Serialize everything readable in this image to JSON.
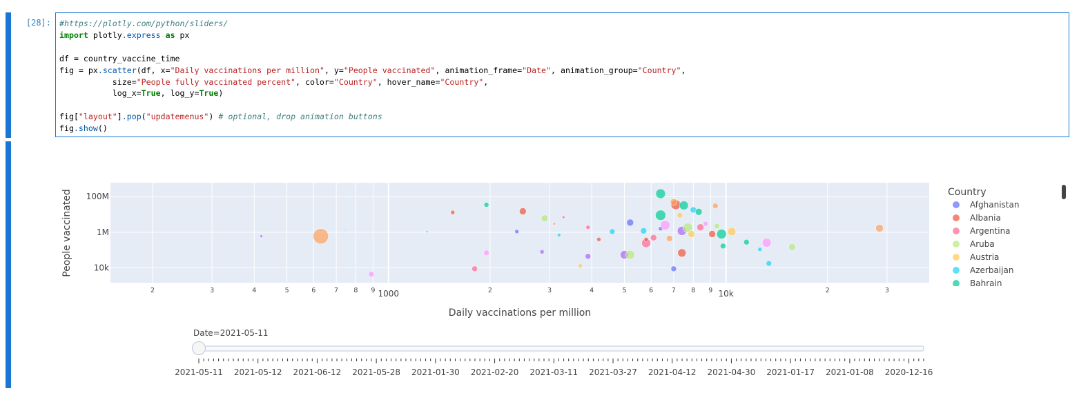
{
  "cell": {
    "prompt": "[28]:",
    "code_lines": [
      [
        {
          "c": "cm",
          "t": "#https://plotly.com/python/sliders/"
        }
      ],
      [
        {
          "c": "kw",
          "t": "import"
        },
        {
          "c": "",
          "t": " plotly"
        },
        {
          "c": "at",
          "t": ".express"
        },
        {
          "c": "",
          "t": " "
        },
        {
          "c": "kw",
          "t": "as"
        },
        {
          "c": "",
          "t": " px"
        }
      ],
      [
        {
          "c": "",
          "t": ""
        }
      ],
      [
        {
          "c": "",
          "t": "df = country_vaccine_time"
        }
      ],
      [
        {
          "c": "",
          "t": "fig = px"
        },
        {
          "c": "at",
          "t": ".scatter"
        },
        {
          "c": "",
          "t": "(df, x="
        },
        {
          "c": "st",
          "t": "\"Daily vaccinations per million\""
        },
        {
          "c": "",
          "t": ", y="
        },
        {
          "c": "st",
          "t": "\"People vaccinated\""
        },
        {
          "c": "",
          "t": ", animation_frame="
        },
        {
          "c": "st",
          "t": "\"Date\""
        },
        {
          "c": "",
          "t": ", animation_group="
        },
        {
          "c": "st",
          "t": "\"Country\""
        },
        {
          "c": "",
          "t": ","
        }
      ],
      [
        {
          "c": "",
          "t": "           size="
        },
        {
          "c": "st",
          "t": "\"People fully vaccinated percent\""
        },
        {
          "c": "",
          "t": ", color="
        },
        {
          "c": "st",
          "t": "\"Country\""
        },
        {
          "c": "",
          "t": ", hover_name="
        },
        {
          "c": "st",
          "t": "\"Country\""
        },
        {
          "c": "",
          "t": ","
        }
      ],
      [
        {
          "c": "",
          "t": "           log_x="
        },
        {
          "c": "kw",
          "t": "True"
        },
        {
          "c": "",
          "t": ", log_y="
        },
        {
          "c": "kw",
          "t": "True"
        },
        {
          "c": "",
          "t": ")"
        }
      ],
      [
        {
          "c": "",
          "t": ""
        }
      ],
      [
        {
          "c": "",
          "t": "fig["
        },
        {
          "c": "st",
          "t": "\"layout\""
        },
        {
          "c": "",
          "t": "]"
        },
        {
          "c": "at",
          "t": ".pop"
        },
        {
          "c": "",
          "t": "("
        },
        {
          "c": "st",
          "t": "\"updatemenus\""
        },
        {
          "c": "",
          "t": ") "
        },
        {
          "c": "cm",
          "t": "# optional, drop animation buttons"
        }
      ],
      [
        {
          "c": "",
          "t": "fig"
        },
        {
          "c": "at",
          "t": ".show"
        },
        {
          "c": "",
          "t": "()"
        }
      ]
    ]
  },
  "chart_data": {
    "type": "scatter",
    "xlabel": "Daily vaccinations per million",
    "ylabel": "People vaccinated",
    "x_log": true,
    "y_log": true,
    "xlim": [
      150,
      40000
    ],
    "ylim": [
      1500,
      600000000
    ],
    "x_major_ticks": [
      {
        "v": 1000,
        "label": "1000"
      },
      {
        "v": 10000,
        "label": "10k"
      }
    ],
    "x_minor_ticks": [
      {
        "v": 200,
        "label": "2"
      },
      {
        "v": 300,
        "label": "3"
      },
      {
        "v": 400,
        "label": "4"
      },
      {
        "v": 500,
        "label": "5"
      },
      {
        "v": 600,
        "label": "6"
      },
      {
        "v": 700,
        "label": "7"
      },
      {
        "v": 800,
        "label": "8"
      },
      {
        "v": 900,
        "label": "9"
      },
      {
        "v": 2000,
        "label": "2"
      },
      {
        "v": 3000,
        "label": "3"
      },
      {
        "v": 4000,
        "label": "4"
      },
      {
        "v": 5000,
        "label": "5"
      },
      {
        "v": 6000,
        "label": "6"
      },
      {
        "v": 7000,
        "label": "7"
      },
      {
        "v": 8000,
        "label": "8"
      },
      {
        "v": 9000,
        "label": "9"
      },
      {
        "v": 20000,
        "label": "2"
      },
      {
        "v": 30000,
        "label": "3"
      }
    ],
    "y_ticks": [
      {
        "v": 10000,
        "label": "10k"
      },
      {
        "v": 1000000,
        "label": "1M"
      },
      {
        "v": 100000000,
        "label": "100M"
      }
    ],
    "grid": true,
    "legend": {
      "title": "Country",
      "placement": "right",
      "entries": [
        {
          "name": "Afghanistan",
          "color": "#636efa"
        },
        {
          "name": "Albania",
          "color": "#ef553b"
        },
        {
          "name": "Argentina",
          "color": "#ff6692"
        },
        {
          "name": "Aruba",
          "color": "#b6e880"
        },
        {
          "name": "Austria",
          "color": "#fecb52"
        },
        {
          "name": "Azerbaijan",
          "color": "#19d3f3"
        },
        {
          "name": "Bahrain",
          "color": "#00cc96"
        }
      ]
    },
    "palette": [
      "#636efa",
      "#ef553b",
      "#00cc96",
      "#ab63fa",
      "#ffa15a",
      "#19d3f3",
      "#ff6692",
      "#b6e880",
      "#ff97ff",
      "#fecb52"
    ],
    "points": [
      {
        "x": 420,
        "y": 600000,
        "s": 2,
        "c": 3
      },
      {
        "x": 630,
        "y": 600000,
        "s": 11,
        "c": 4
      },
      {
        "x": 740,
        "y": 1300000,
        "s": 1,
        "c": 5
      },
      {
        "x": 890,
        "y": 4500,
        "s": 4,
        "c": 8
      },
      {
        "x": 960,
        "y": 4200000,
        "s": 1,
        "c": 9
      },
      {
        "x": 1300,
        "y": 1100000,
        "s": 1.5,
        "c": 5
      },
      {
        "x": 1550,
        "y": 13000000,
        "s": 3,
        "c": 1
      },
      {
        "x": 1950,
        "y": 35000000,
        "s": 3.5,
        "c": 2
      },
      {
        "x": 2500,
        "y": 15000000,
        "s": 5,
        "c": 1
      },
      {
        "x": 2400,
        "y": 1100000,
        "s": 3,
        "c": 0
      },
      {
        "x": 1800,
        "y": 9000,
        "s": 4,
        "c": 6
      },
      {
        "x": 1950,
        "y": 70000,
        "s": 4,
        "c": 8
      },
      {
        "x": 2900,
        "y": 6000000,
        "s": 5,
        "c": 7
      },
      {
        "x": 3100,
        "y": 3000000,
        "s": 2,
        "c": 4
      },
      {
        "x": 3300,
        "y": 7000000,
        "s": 2,
        "c": 6
      },
      {
        "x": 3200,
        "y": 700000,
        "s": 2.5,
        "c": 5
      },
      {
        "x": 2850,
        "y": 80000,
        "s": 3,
        "c": 3
      },
      {
        "x": 3700,
        "y": 13000,
        "s": 3,
        "c": 9
      },
      {
        "x": 3900,
        "y": 45000,
        "s": 4,
        "c": 3
      },
      {
        "x": 3900,
        "y": 1900000,
        "s": 3,
        "c": 6
      },
      {
        "x": 4200,
        "y": 400000,
        "s": 3,
        "c": 1
      },
      {
        "x": 4600,
        "y": 1100000,
        "s": 4,
        "c": 5
      },
      {
        "x": 5000,
        "y": 55000,
        "s": 6,
        "c": 3
      },
      {
        "x": 5200,
        "y": 55000,
        "s": 6.5,
        "c": 7
      },
      {
        "x": 5200,
        "y": 3500000,
        "s": 5,
        "c": 0
      },
      {
        "x": 5700,
        "y": 1200000,
        "s": 4.5,
        "c": 5
      },
      {
        "x": 5800,
        "y": 250000,
        "s": 6.5,
        "c": 6
      },
      {
        "x": 6400,
        "y": 1600000,
        "s": 3,
        "c": 0
      },
      {
        "x": 6400,
        "y": 145000000,
        "s": 7,
        "c": 2
      },
      {
        "x": 6400,
        "y": 9000000,
        "s": 7.5,
        "c": 2
      },
      {
        "x": 6600,
        "y": 2500000,
        "s": 7,
        "c": 8
      },
      {
        "x": 7000,
        "y": 9000,
        "s": 4,
        "c": 0
      },
      {
        "x": 7100,
        "y": 35000000,
        "s": 7,
        "c": 1
      },
      {
        "x": 7500,
        "y": 32000000,
        "s": 6.5,
        "c": 2
      },
      {
        "x": 7400,
        "y": 70000,
        "s": 6,
        "c": 1
      },
      {
        "x": 7400,
        "y": 1200000,
        "s": 6.5,
        "c": 3
      },
      {
        "x": 7700,
        "y": 1800000,
        "s": 7,
        "c": 7
      },
      {
        "x": 8000,
        "y": 18000000,
        "s": 4.5,
        "c": 5
      },
      {
        "x": 8300,
        "y": 14000000,
        "s": 5,
        "c": 2
      },
      {
        "x": 8400,
        "y": 1900000,
        "s": 5,
        "c": 6
      },
      {
        "x": 9100,
        "y": 800000,
        "s": 5,
        "c": 1
      },
      {
        "x": 9300,
        "y": 30000000,
        "s": 4,
        "c": 4
      },
      {
        "x": 9400,
        "y": 2200000,
        "s": 4,
        "c": 7
      },
      {
        "x": 9700,
        "y": 800000,
        "s": 7,
        "c": 2
      },
      {
        "x": 9800,
        "y": 170000,
        "s": 4,
        "c": 2
      },
      {
        "x": 10400,
        "y": 1100000,
        "s": 6,
        "c": 9
      },
      {
        "x": 11500,
        "y": 280000,
        "s": 4,
        "c": 2
      },
      {
        "x": 12600,
        "y": 110000,
        "s": 3,
        "c": 5
      },
      {
        "x": 13200,
        "y": 260000,
        "s": 6.5,
        "c": 8
      },
      {
        "x": 13400,
        "y": 18000,
        "s": 4,
        "c": 5
      },
      {
        "x": 15700,
        "y": 150000,
        "s": 5,
        "c": 7
      },
      {
        "x": 28500,
        "y": 1700000,
        "s": 5.5,
        "c": 4
      },
      {
        "x": 6800,
        "y": 450000,
        "s": 4.5,
        "c": 4
      },
      {
        "x": 7300,
        "y": 9000000,
        "s": 4,
        "c": 9
      },
      {
        "x": 8700,
        "y": 3000000,
        "s": 3.5,
        "c": 8
      },
      {
        "x": 7000,
        "y": 50000000,
        "s": 5,
        "c": 4
      },
      {
        "x": 7900,
        "y": 800000,
        "s": 5,
        "c": 9
      },
      {
        "x": 6100,
        "y": 500000,
        "s": 4.5,
        "c": 6
      },
      {
        "x": 5800,
        "y": 400000,
        "s": 3,
        "c": 1
      }
    ]
  },
  "slider": {
    "label": "Date=2021-05-11",
    "current": "2021-05-11",
    "tick_labels": [
      "2021-05-11",
      "2021-05-12",
      "2021-06-12",
      "2021-05-28",
      "2021-01-30",
      "2021-02-20",
      "2021-03-11",
      "2021-03-27",
      "2021-04-12",
      "2021-04-30",
      "2021-01-17",
      "2021-01-08",
      "2020-12-16"
    ],
    "frame_count": 148,
    "position": 0
  }
}
